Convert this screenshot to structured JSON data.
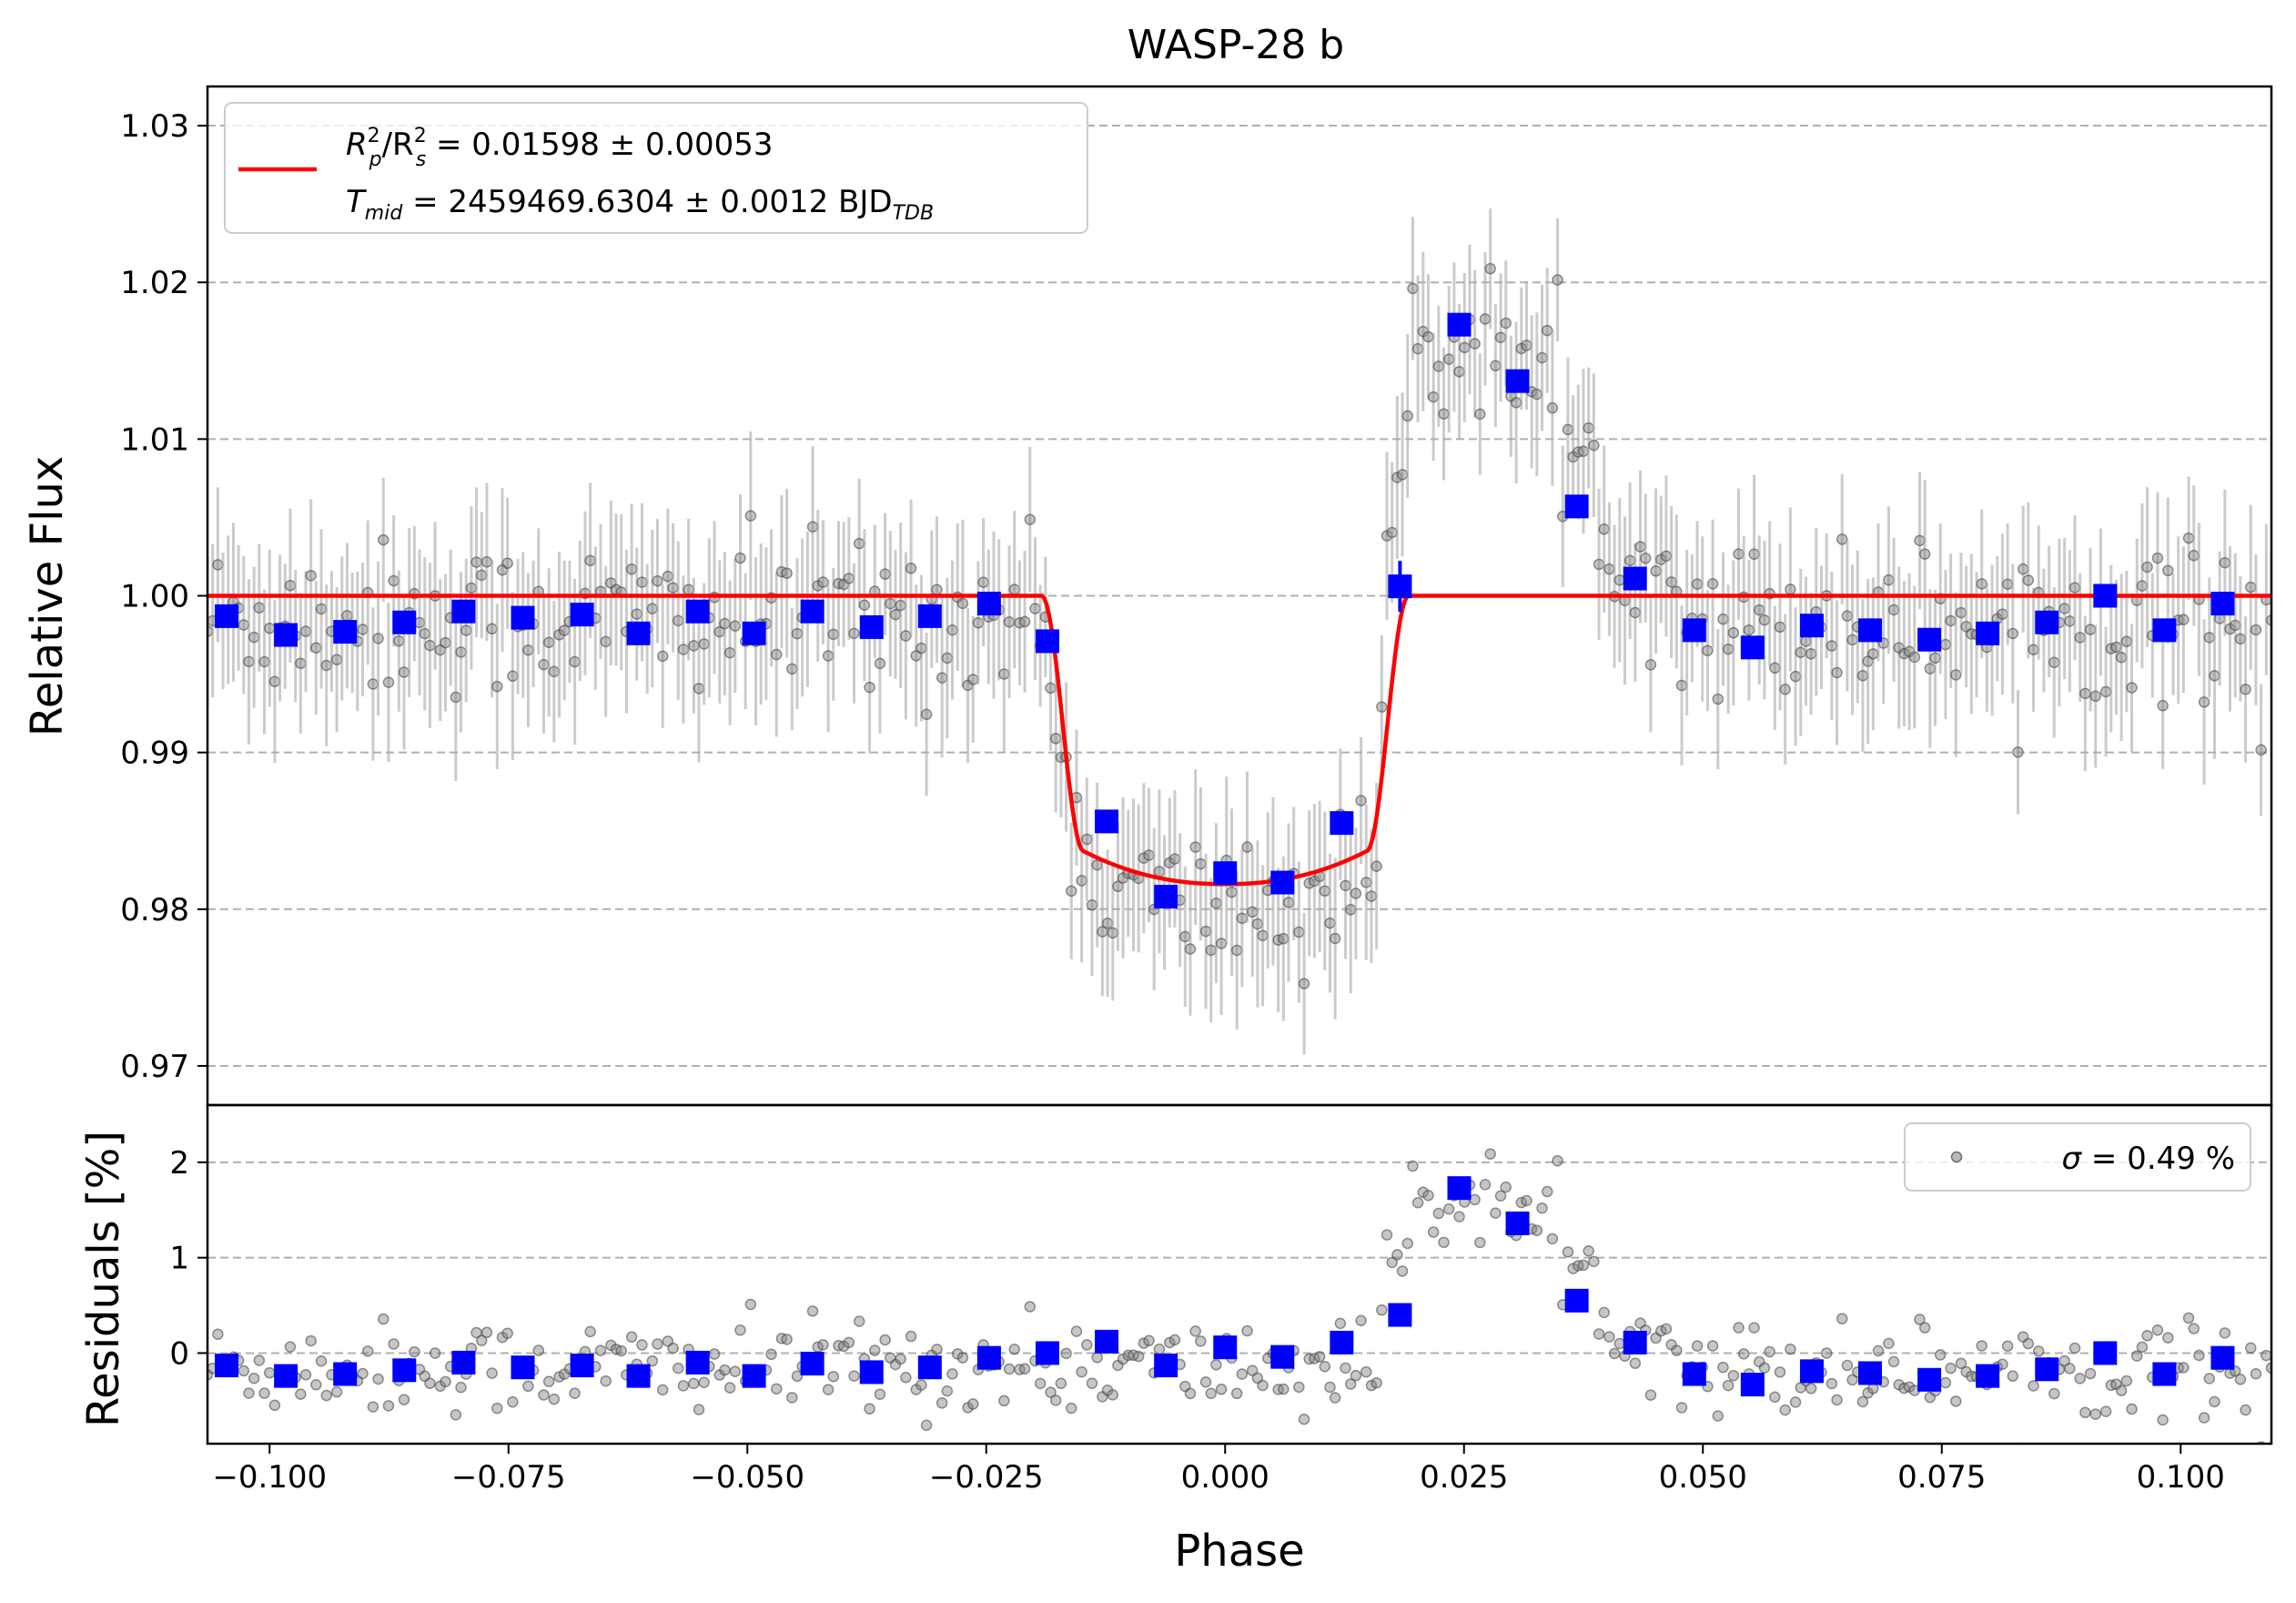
{
  "chart_data": [
    {
      "type": "scatter",
      "panel": "top",
      "title": "WASP-28 b",
      "xlabel": "",
      "ylabel": "Relative Flux",
      "xlim": [
        -0.1065,
        0.1095
      ],
      "ylim": [
        0.9675,
        1.0325
      ],
      "yticks": [
        0.97,
        0.98,
        0.99,
        1.0,
        1.01,
        1.02,
        1.03
      ],
      "ytick_labels": [
        "0.97",
        "0.98",
        "0.99",
        "1.00",
        "1.01",
        "1.02",
        "1.03"
      ],
      "grid": "y-dashed",
      "legend": {
        "placement": "top-left",
        "line1_main": "R",
        "line1_sub1": "p",
        "line1_sup1": "2",
        "line1_slash": "/R",
        "line1_sub2": "s",
        "line1_sup2": "2",
        "line1_value": " = 0.01598 ± 0.00053",
        "line2_main": "T",
        "line2_sub": "mid",
        "line2_value": " = 2459469.6304 ± 0.0012 BJD",
        "line2_unit_sub": "TDB"
      },
      "model": {
        "name": "transit model",
        "color": "#ff0000",
        "baseline": 1.0,
        "depth_min": 0.9816,
        "t1": -0.0192,
        "t2": -0.0148,
        "t3": 0.0148,
        "t4": 0.0192
      },
      "raw_points": {
        "name": "unbinned data",
        "color": "#808080",
        "x_start": -0.1065,
        "x_end": 0.1095,
        "count": 400,
        "typical_error": 0.0045,
        "scatter": 0.0025
      },
      "binned": {
        "name": "binned data",
        "color": "#0000ff",
        "x": [
          -0.1045,
          -0.0983,
          -0.0921,
          -0.0859,
          -0.0797,
          -0.0735,
          -0.0673,
          -0.0614,
          -0.0552,
          -0.0493,
          -0.0432,
          -0.037,
          -0.0309,
          -0.0247,
          -0.0186,
          -0.0124,
          -0.0062,
          0.0,
          0.006,
          0.0122,
          0.0183,
          0.0245,
          0.0306,
          0.0368,
          0.0429,
          0.0491,
          0.0552,
          0.0614,
          0.0675,
          0.0737,
          0.0798,
          0.086,
          0.0921,
          0.0983,
          0.1044
        ],
        "y": [
          0.9987,
          0.9975,
          0.9977,
          0.9983,
          0.999,
          0.9986,
          0.9988,
          0.9976,
          0.999,
          0.9976,
          0.999,
          0.998,
          0.9987,
          0.9995,
          0.9971,
          0.9856,
          0.9808,
          0.9823,
          0.9817,
          0.9855,
          1.0006,
          1.0173,
          1.0137,
          1.0057,
          1.0011,
          0.9978,
          0.9967,
          0.9981,
          0.9978,
          0.9972,
          0.9976,
          0.9983,
          1.0,
          0.9978,
          0.9995
        ]
      }
    },
    {
      "type": "scatter",
      "panel": "bottom",
      "xlabel": "Phase",
      "ylabel": "Residuals [%]",
      "xlim": [
        -0.1065,
        0.1095
      ],
      "ylim": [
        -0.95,
        2.6
      ],
      "xticks": [
        -0.1,
        -0.075,
        -0.05,
        -0.025,
        0.0,
        0.025,
        0.05,
        0.075,
        0.1
      ],
      "xtick_labels": [
        "−0.100",
        "−0.075",
        "−0.050",
        "−0.025",
        "0.000",
        "0.025",
        "0.050",
        "0.075",
        "0.100"
      ],
      "yticks": [
        0,
        1,
        2
      ],
      "ytick_labels": [
        "0",
        "1",
        "2"
      ],
      "grid": "y-dashed",
      "legend": {
        "placement": "top-right",
        "symbol": "σ",
        "value": " = 0.49 %"
      },
      "raw_points": {
        "name": "unbinned residuals",
        "color": "#808080",
        "count": 400,
        "scatter": 0.25
      },
      "binned": {
        "name": "binned residuals",
        "color": "#0000ff",
        "x": [
          -0.1045,
          -0.0983,
          -0.0921,
          -0.0859,
          -0.0797,
          -0.0735,
          -0.0673,
          -0.0614,
          -0.0552,
          -0.0493,
          -0.0432,
          -0.037,
          -0.0309,
          -0.0247,
          -0.0186,
          -0.0124,
          -0.0062,
          0.0,
          0.006,
          0.0122,
          0.0183,
          0.0245,
          0.0306,
          0.0368,
          0.0429,
          0.0491,
          0.0552,
          0.0614,
          0.0675,
          0.0737,
          0.0798,
          0.086,
          0.0921,
          0.0983,
          0.1044
        ],
        "y": [
          -0.13,
          -0.24,
          -0.22,
          -0.18,
          -0.1,
          -0.15,
          -0.13,
          -0.24,
          -0.1,
          -0.24,
          -0.11,
          -0.2,
          -0.15,
          -0.05,
          0.0,
          0.12,
          -0.13,
          0.06,
          -0.04,
          0.11,
          0.4,
          1.73,
          1.36,
          0.55,
          0.11,
          -0.22,
          -0.33,
          -0.19,
          -0.21,
          -0.28,
          -0.24,
          -0.17,
          0.0,
          -0.22,
          -0.05
        ]
      }
    }
  ]
}
